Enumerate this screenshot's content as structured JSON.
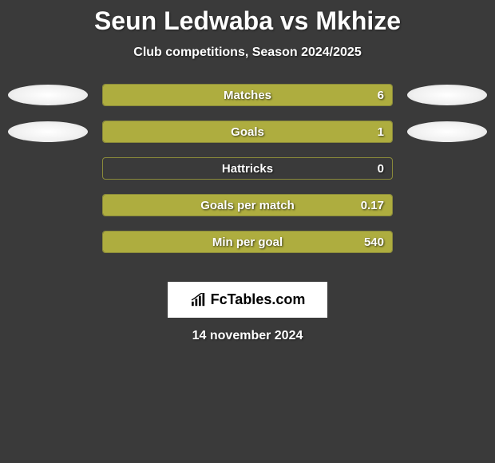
{
  "title": "Seun Ledwaba vs Mkhize",
  "subtitle": "Club competitions, Season 2024/2025",
  "background_color": "#3a3a3a",
  "bar_fill_color": "#aead3f",
  "bar_border_color": "#8a8a3a",
  "text_color": "#ffffff",
  "ellipse_color": "#ffffff",
  "logo_bg_color": "#ffffff",
  "logo_text": "FcTables.com",
  "date": "14 november 2024",
  "stats": [
    {
      "label": "Matches",
      "value": "6",
      "fill_pct": 100,
      "left_ellipse": true,
      "right_ellipse": true
    },
    {
      "label": "Goals",
      "value": "1",
      "fill_pct": 100,
      "left_ellipse": true,
      "right_ellipse": true
    },
    {
      "label": "Hattricks",
      "value": "0",
      "fill_pct": 0,
      "left_ellipse": false,
      "right_ellipse": false
    },
    {
      "label": "Goals per match",
      "value": "0.17",
      "fill_pct": 100,
      "left_ellipse": false,
      "right_ellipse": false
    },
    {
      "label": "Min per goal",
      "value": "540",
      "fill_pct": 100,
      "left_ellipse": false,
      "right_ellipse": false
    }
  ]
}
